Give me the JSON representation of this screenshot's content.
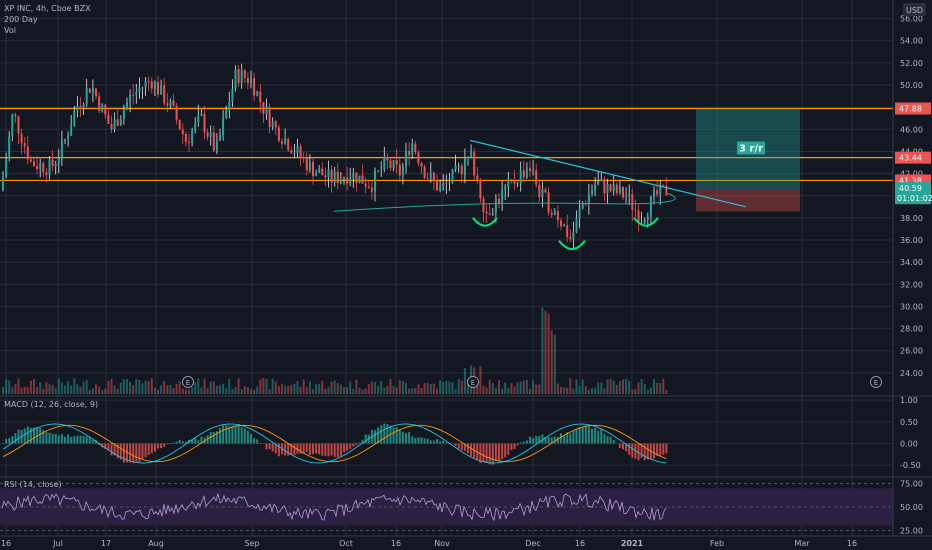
{
  "header": {
    "title": "XP INC, 4h, Cboe BZX",
    "ma_label": "200 Day",
    "vol_label": "Vol",
    "currency": "USD",
    "macd_label": "MACD (12, 26, close, 9)",
    "rsi_label": "RSI (14, close)"
  },
  "colors": {
    "background": "#131722",
    "grid": "#2a2e39",
    "up": "#26a69a",
    "down": "#ef5350",
    "wick_up": "#ffffff",
    "orange": "#ff9800",
    "teal": "#26a69a",
    "trend": "#26c6da",
    "macd_signal": "#ff9800",
    "macd_line": "#26c6da",
    "rsi_band": "#2b2041",
    "rsi_line": "#b39ddb"
  },
  "chart_data": {
    "type": "candlestick",
    "price_axis": {
      "ticks": [
        "56.00",
        "54.00",
        "52.00",
        "50.00",
        "48.00",
        "46.00",
        "44.00",
        "42.00",
        "40.00",
        "38.00",
        "36.00",
        "34.00",
        "32.00",
        "30.00",
        "28.00",
        "26.00",
        "24.00"
      ],
      "range": [
        22.0,
        57.5
      ]
    },
    "x_axis": {
      "ticks": [
        "16",
        "Jul",
        "17",
        "Aug",
        "Sep",
        "Oct",
        "16",
        "Nov",
        "Dec",
        "16",
        "2021",
        "Feb",
        "Mar",
        "16"
      ]
    },
    "horizontal_levels": [
      {
        "value": 47.88,
        "label": "47.88",
        "color": "#ef5350"
      },
      {
        "value": 43.44,
        "label": "43.44",
        "color": "#ef5350"
      },
      {
        "value": 41.38,
        "label": "41.38",
        "color": "#ef5350"
      }
    ],
    "current_price": {
      "value": "40.59",
      "countdown": "01:01:02"
    },
    "risk_reward": {
      "label": "3 r/r",
      "target": 47.88,
      "entry": 40.59,
      "stop": 38.6
    },
    "earnings_markers": [
      "E",
      "E",
      "E"
    ],
    "macd": {
      "ticks": [
        "1.00",
        "0.50",
        "0.00",
        "-0.50"
      ],
      "range": [
        -0.75,
        1.05
      ]
    },
    "rsi": {
      "ticks": [
        "75.00",
        "50.00",
        "25.00"
      ],
      "range": [
        20,
        80
      ],
      "band": [
        30,
        70
      ]
    }
  }
}
